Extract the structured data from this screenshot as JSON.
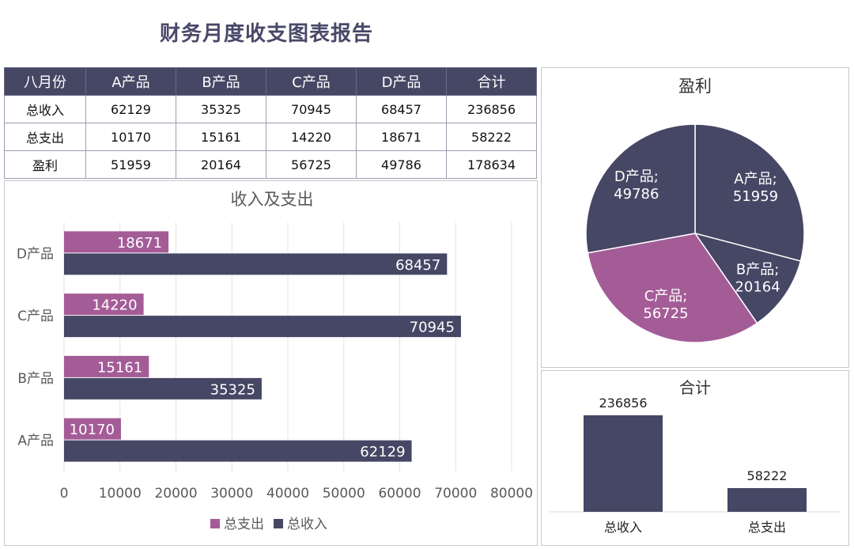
{
  "title": "财务月度收支图表报告",
  "table": {
    "headers": [
      "八月份",
      "A产品",
      "B产品",
      "C产品",
      "D产品",
      "合计"
    ],
    "rows": [
      {
        "label": "总收入",
        "values": [
          "62129",
          "35325",
          "70945",
          "68457",
          "236856"
        ]
      },
      {
        "label": "总支出",
        "values": [
          "10170",
          "15161",
          "14220",
          "18671",
          "58222"
        ]
      },
      {
        "label": "盈利",
        "values": [
          "51959",
          "20164",
          "56725",
          "49786",
          "178634"
        ]
      }
    ]
  },
  "colors": {
    "navy": "#464665",
    "magenta": "#a45c97"
  },
  "chart_data": [
    {
      "type": "bar",
      "orientation": "horizontal",
      "title": "收入及支出",
      "categories": [
        "A产品",
        "B产品",
        "C产品",
        "D产品"
      ],
      "series": [
        {
          "name": "总支出",
          "values": [
            10170,
            15161,
            14220,
            18671
          ],
          "color": "#a45c97"
        },
        {
          "name": "总收入",
          "values": [
            62129,
            35325,
            70945,
            68457
          ],
          "color": "#464665"
        }
      ],
      "xlim": [
        0,
        80000
      ],
      "xticks": [
        0,
        10000,
        20000,
        30000,
        40000,
        50000,
        60000,
        70000,
        80000
      ],
      "grid": true,
      "legend": "bottom"
    },
    {
      "type": "pie",
      "title": "盈利",
      "labels": [
        "A产品",
        "B产品",
        "C产品",
        "D产品"
      ],
      "values": [
        51959,
        20164,
        56725,
        49786
      ],
      "colors": [
        "#464665",
        "#464665",
        "#a45c97",
        "#464665"
      ]
    },
    {
      "type": "bar",
      "title": "合计",
      "categories": [
        "总收入",
        "总支出"
      ],
      "values": [
        236856,
        58222
      ],
      "color": "#464665"
    }
  ]
}
